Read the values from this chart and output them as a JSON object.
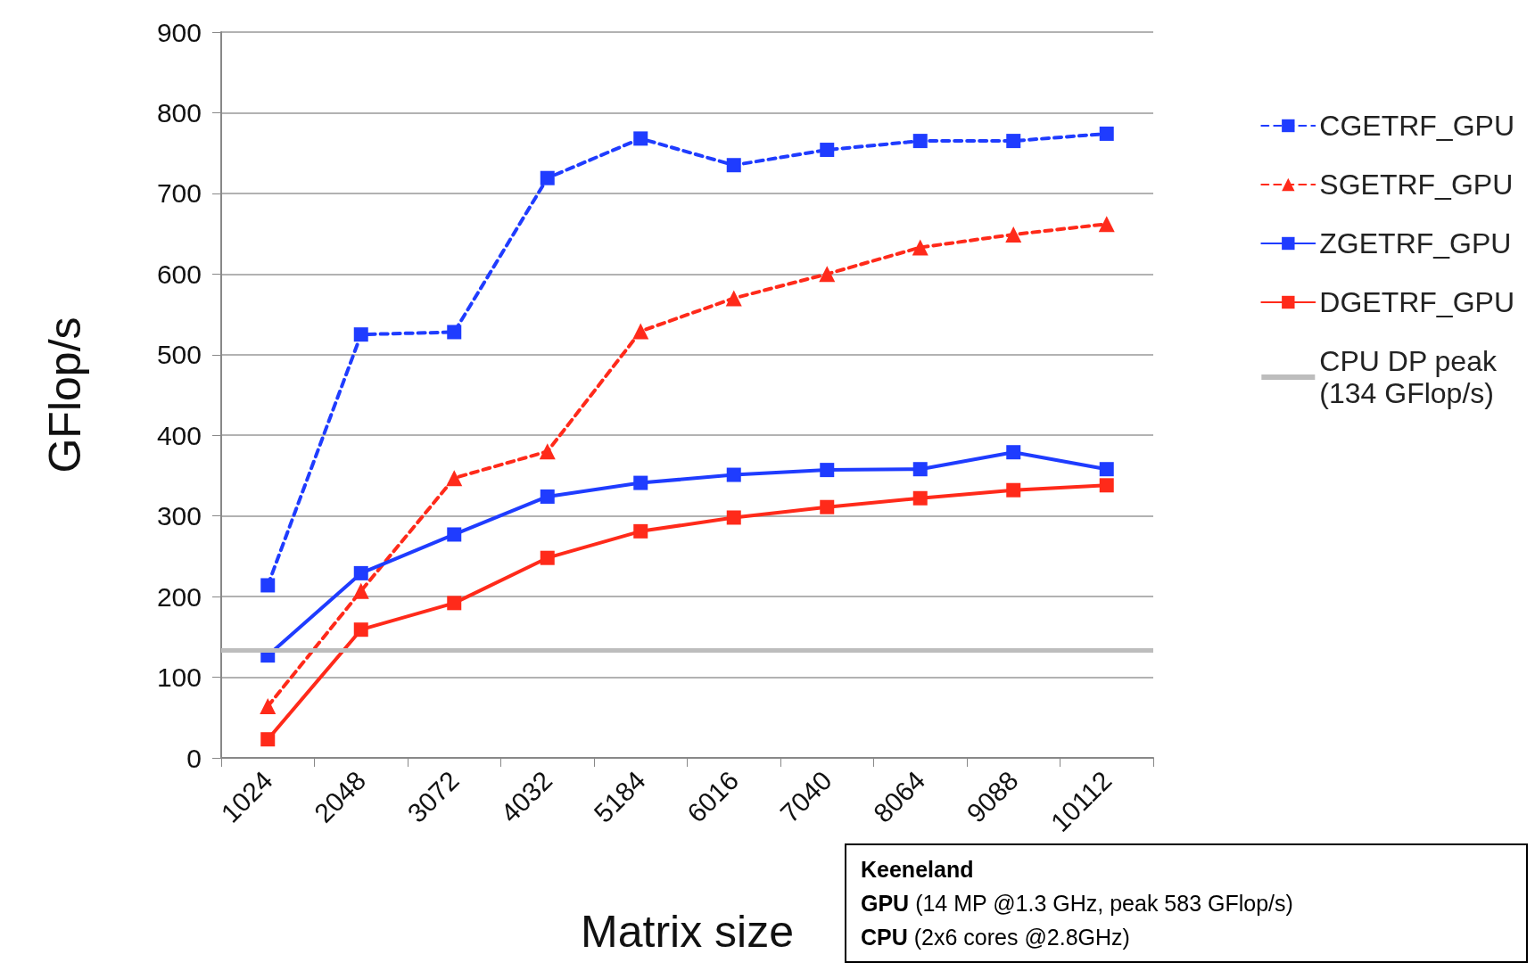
{
  "chart_data": {
    "type": "line",
    "xlabel": "Matrix size",
    "ylabel": "GFlop/s",
    "categories": [
      "1024",
      "2048",
      "3072",
      "4032",
      "5184",
      "6016",
      "7040",
      "8064",
      "9088",
      "10112"
    ],
    "series": [
      {
        "name": "CGETRF_GPU",
        "color": "#1f3cff",
        "marker": "square",
        "line_style": "dashed",
        "values": [
          214,
          525,
          528,
          719,
          768,
          735,
          754,
          765,
          765,
          774
        ]
      },
      {
        "name": "SGETRF_GPU",
        "color": "#ff2a1a",
        "marker": "triangle",
        "line_style": "dashed",
        "values": [
          64,
          207,
          347,
          380,
          529,
          570,
          600,
          633,
          649,
          662
        ]
      },
      {
        "name": "ZGETRF_GPU",
        "color": "#1f3cff",
        "marker": "square",
        "line_style": "solid",
        "values": [
          127,
          229,
          277,
          324,
          341,
          351,
          357,
          358,
          379,
          358
        ]
      },
      {
        "name": "DGETRF_GPU",
        "color": "#ff2a1a",
        "marker": "square",
        "line_style": "solid",
        "values": [
          23,
          159,
          192,
          248,
          281,
          298,
          311,
          322,
          332,
          338
        ]
      }
    ],
    "ref_lines": [
      {
        "axis": "y",
        "value": 134,
        "label": "CPU DP peak (134 GFlop/s)",
        "color": "#bdbdbd"
      }
    ],
    "annotations": [
      "Keeneland",
      "GPU (14 MP @1.3 GHz, peak 583 GFlop/s)",
      "CPU (2x6 cores @2.8GHz)"
    ],
    "ylim": [
      0,
      900
    ],
    "yticks": [
      0,
      100,
      200,
      300,
      400,
      500,
      600,
      700,
      800,
      900
    ],
    "grid": "y",
    "legend": "right"
  }
}
